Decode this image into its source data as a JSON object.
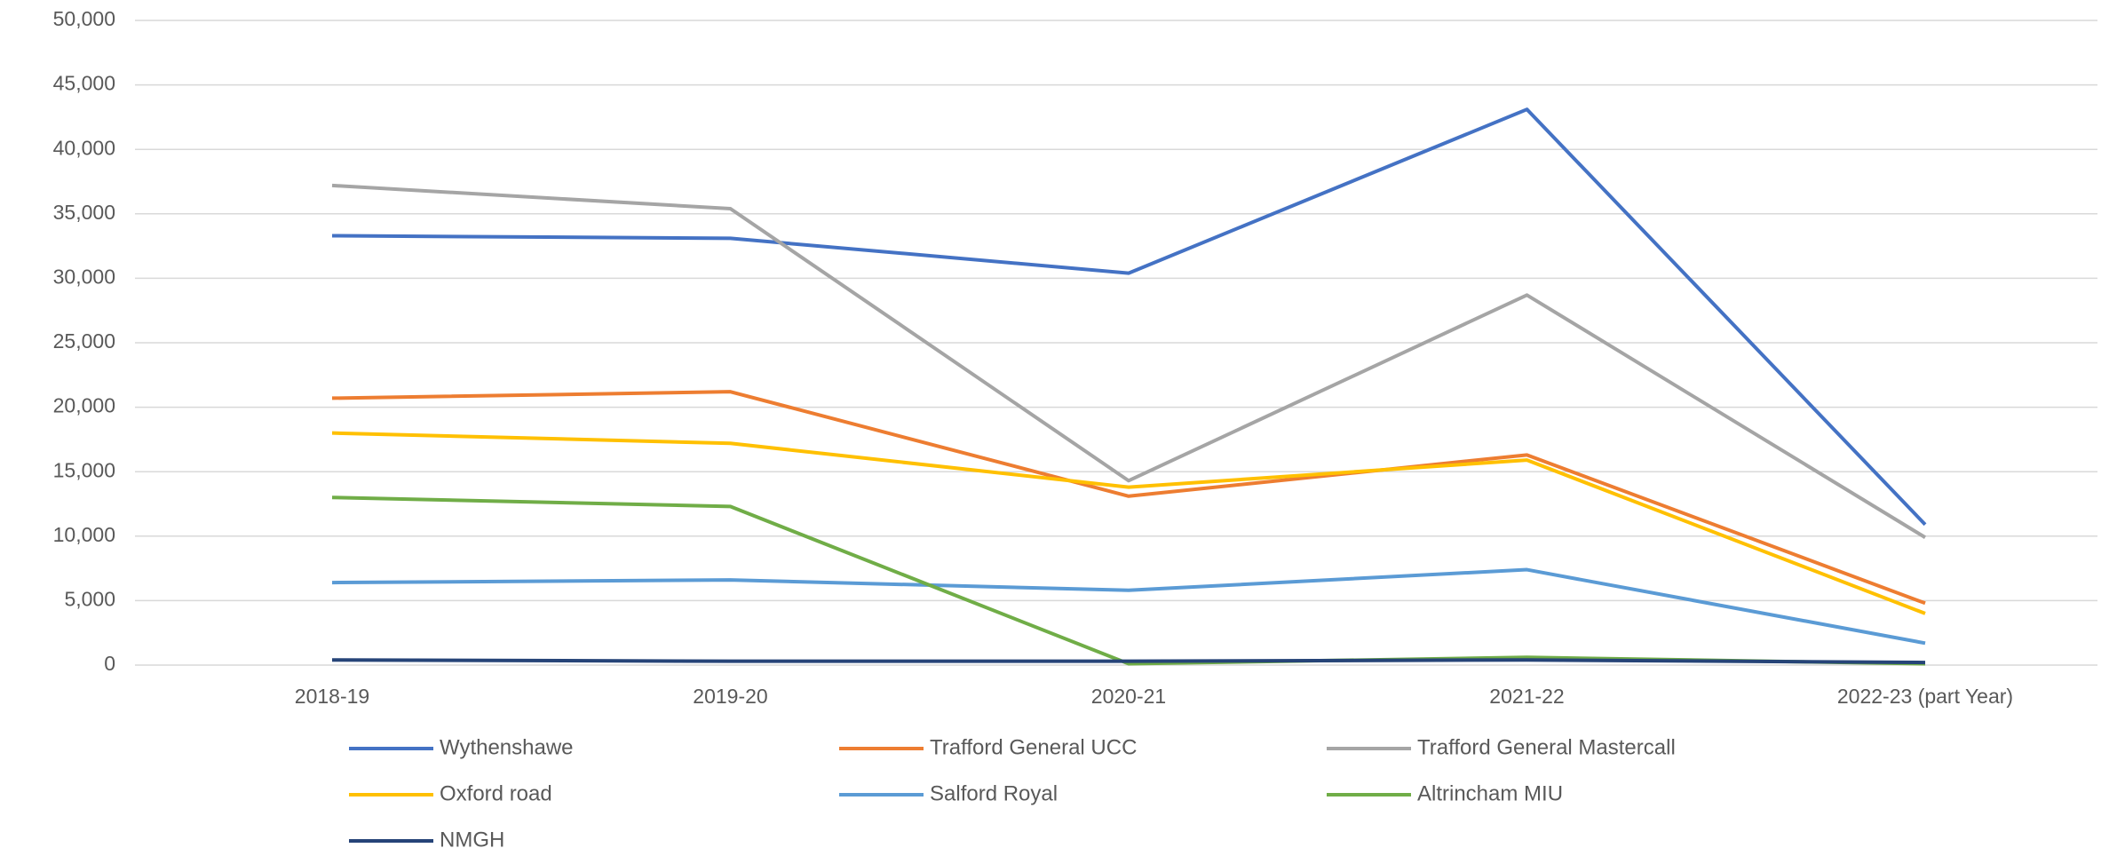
{
  "chart_data": {
    "type": "line",
    "categories": [
      "2018-19",
      "2019-20",
      "2020-21",
      "2021-22",
      "2022-23 (part Year)"
    ],
    "series": [
      {
        "name": "Wythenshawe",
        "color": "#4472c4",
        "values": [
          33300,
          33100,
          30400,
          43100,
          10900
        ]
      },
      {
        "name": "Trafford General UCC",
        "color": "#ed7d31",
        "values": [
          20700,
          21200,
          13100,
          16300,
          4800
        ]
      },
      {
        "name": "Trafford General Mastercall",
        "color": "#a5a5a5",
        "values": [
          37200,
          35400,
          14300,
          28700,
          9900
        ]
      },
      {
        "name": "Oxford road",
        "color": "#ffc000",
        "values": [
          18000,
          17200,
          13800,
          15900,
          4000
        ]
      },
      {
        "name": "Salford Royal",
        "color": "#5b9bd5",
        "values": [
          6400,
          6600,
          5800,
          7400,
          1700
        ]
      },
      {
        "name": "Altrincham MIU",
        "color": "#70ad47",
        "values": [
          13000,
          12300,
          100,
          600,
          100
        ]
      },
      {
        "name": "NMGH",
        "color": "#264478",
        "values": [
          400,
          300,
          300,
          400,
          200
        ]
      }
    ],
    "ylim": [
      0,
      50000
    ],
    "yticks": [
      0,
      {
        "value": 5000,
        "label": "5,000"
      },
      {
        "value": 10000,
        "label": "10,000"
      },
      {
        "value": 15000,
        "label": "15,000"
      },
      {
        "value": 20000,
        "label": "20,000"
      },
      {
        "value": 25000,
        "label": "25,000"
      },
      {
        "value": 30000,
        "label": "30,000"
      },
      {
        "value": 35000,
        "label": "35,000"
      },
      {
        "value": 40000,
        "label": "40,000"
      },
      {
        "value": 45000,
        "label": "45,000"
      },
      {
        "value": 50000,
        "label": "50,000"
      }
    ],
    "grid": true,
    "legend": "bottom"
  }
}
